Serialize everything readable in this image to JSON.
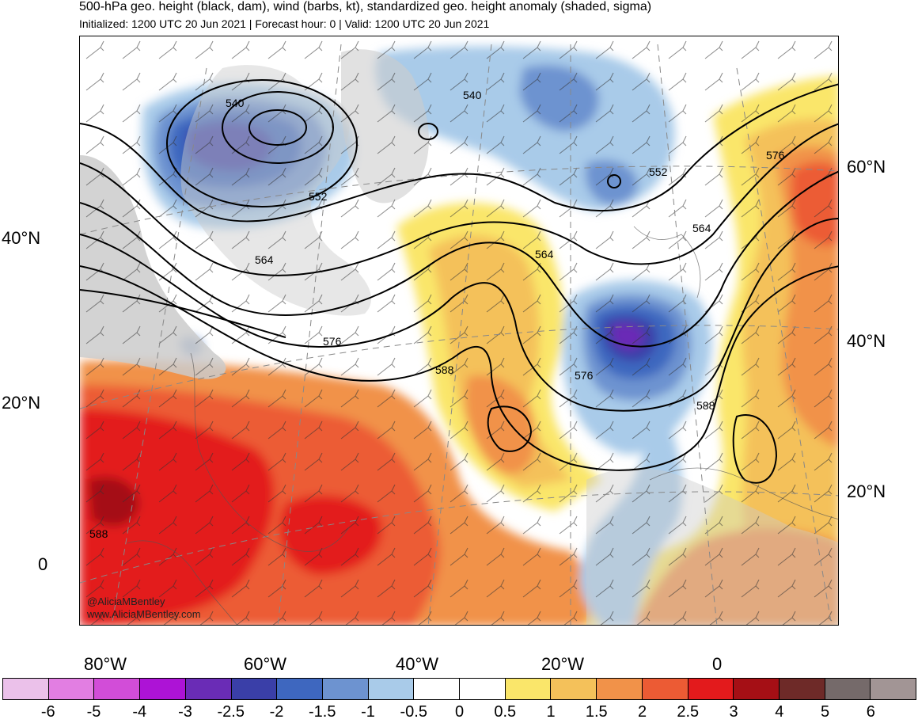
{
  "header": {
    "title": "500-hPa geo. height (black, dam), wind (barbs, kt), standardized geo. height anomaly (shaded, sigma)",
    "subtitle": "Initialized: 1200 UTC 20 Jun 2021 | Forecast hour: 0 | Valid: 1200 UTC 20 Jun 2021"
  },
  "map": {
    "lat_labels_left": [
      "40°N",
      "20°N",
      "0"
    ],
    "lat_labels_right": [
      "60°N",
      "40°N",
      "20°N"
    ],
    "lon_labels": [
      "80°W",
      "60°W",
      "40°W",
      "20°W",
      "0"
    ],
    "contour_labels": [
      "540",
      "540",
      "552",
      "552",
      "564",
      "564",
      "564",
      "576",
      "576",
      "576",
      "588",
      "588",
      "588"
    ],
    "credits": [
      "@AliciaMBentley",
      "www.AliciaMBentley.com"
    ]
  },
  "colorbar": {
    "ticks": [
      "-6",
      "-5",
      "-4",
      "-3",
      "-2.5",
      "-2",
      "-1.5",
      "-1",
      "-0.5",
      "0",
      "0.5",
      "1",
      "1.5",
      "2",
      "2.5",
      "3",
      "4",
      "5",
      "6"
    ],
    "colors": [
      "#ebc1ea",
      "#e27ee2",
      "#d24dd8",
      "#ad13d6",
      "#6a2cb6",
      "#3a3fa8",
      "#3e67bf",
      "#6d93d0",
      "#a9cbe9",
      "#ffffff",
      "#ffffff",
      "#fae66a",
      "#f4c15a",
      "#f19249",
      "#ec5b34",
      "#e31a1c",
      "#a50f15",
      "#6e2a28",
      "#756a6a",
      "#a29595"
    ]
  }
}
